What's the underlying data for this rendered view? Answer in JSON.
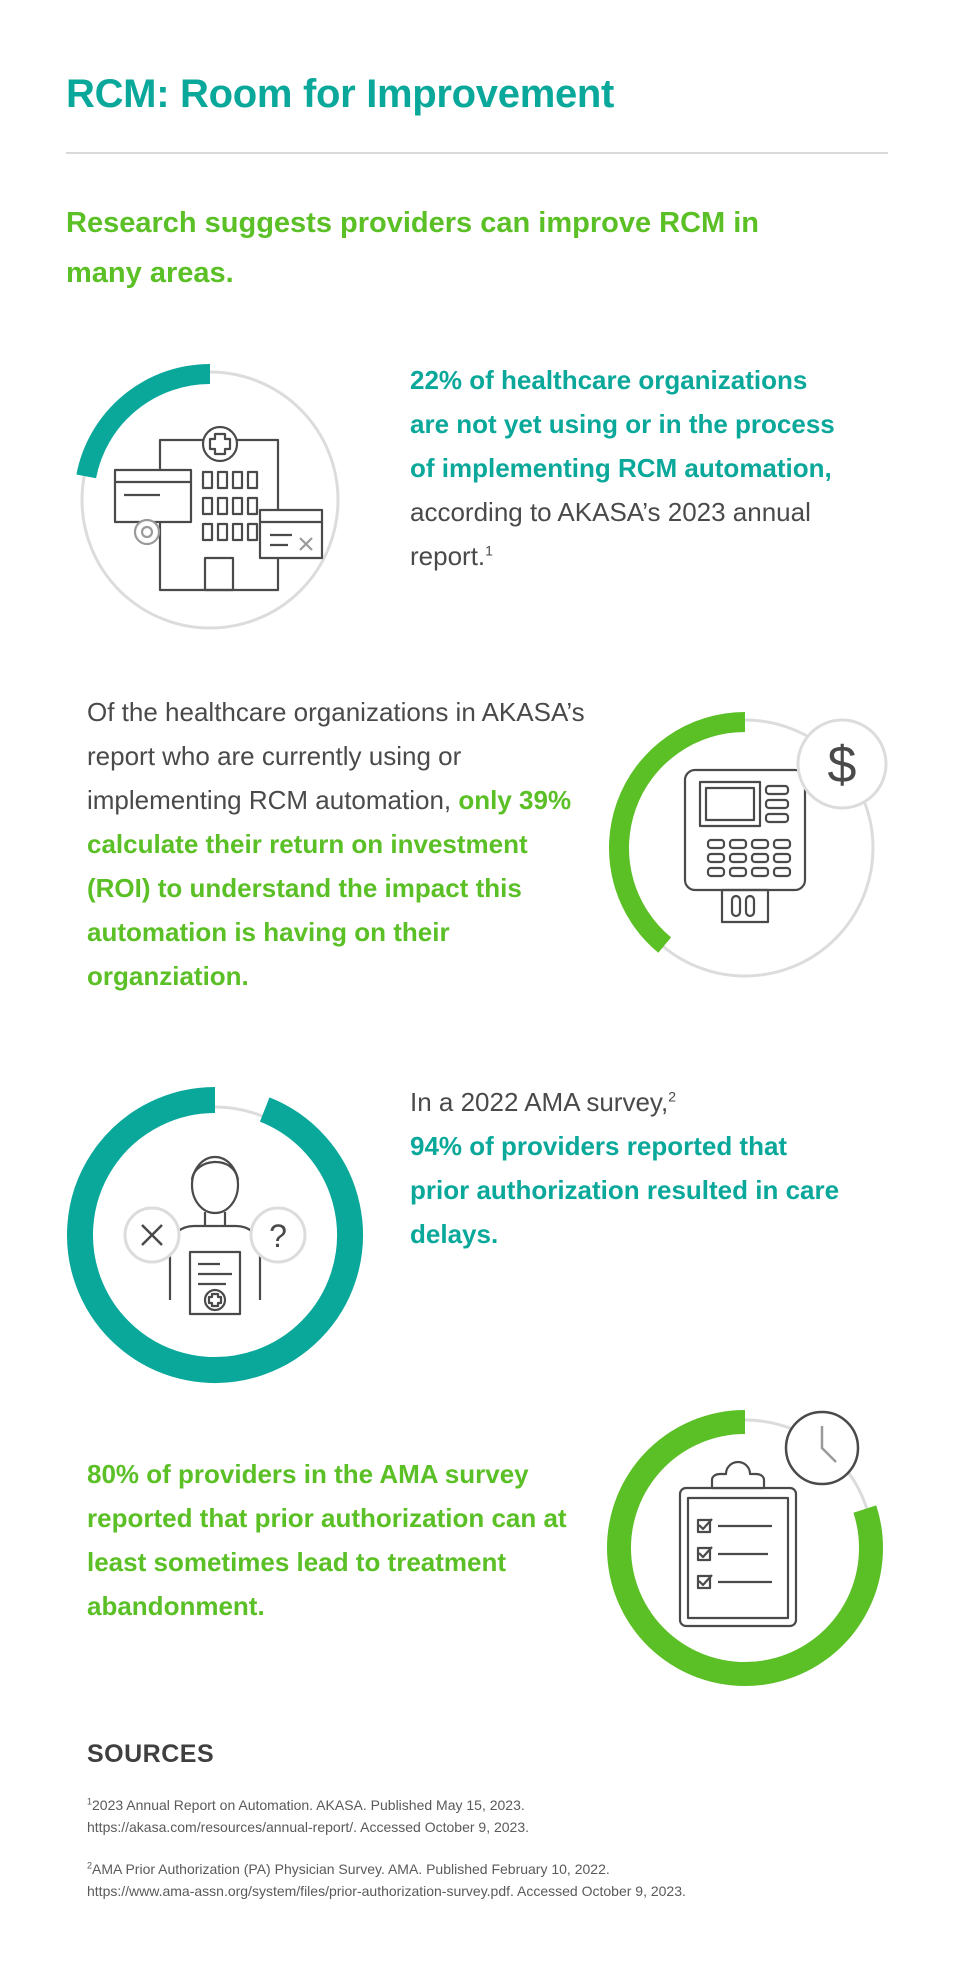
{
  "header": {
    "title": "RCM: Room for Improvement",
    "subtitle": "Research suggests providers can improve RCM in many areas."
  },
  "stats": [
    {
      "highlight": "22% of healthcare organizations are not yet using or in the process of implementing RCM automation,",
      "text": " according to AKASA’s 2023 annual report.",
      "footnote": "1",
      "percent": 22,
      "color": "#0aa89a",
      "icon": "hospital-building-icon"
    },
    {
      "text": "Of the healthcare organizations in AKASA’s report who are currently using or implementing RCM automation, ",
      "highlight": "only 39% calculate their return on investment (ROI) to understand the impact this automation is having on their organziation.",
      "percent": 39,
      "color": "#5bbf26",
      "icon": "payment-terminal-icon"
    },
    {
      "text": "In a 2022 AMA survey,",
      "footnote": "2",
      "highlight": "94% of providers reported that prior authorization resulted in care delays.",
      "percent": 94,
      "color": "#0aa89a",
      "icon": "provider-person-icon"
    },
    {
      "highlight": "80% of providers in the AMA survey reported that prior authorization can at least sometimes lead to treatment abandonment.",
      "percent": 80,
      "color": "#5bbf26",
      "icon": "clipboard-clock-icon"
    }
  ],
  "sources": {
    "heading": "SOURCES",
    "items": [
      {
        "num": "1",
        "line1": "2023 Annual Report on Automation. AKASA. Published May 15, 2023.",
        "line2": "https://akasa.com/resources/annual-report/. Accessed October 9, 2023."
      },
      {
        "num": "2",
        "line1": "AMA Prior Authorization (PA) Physician Survey. AMA. Published February 10, 2022.",
        "line2": "https://www.ama-assn.org/system/files/prior-authorization-survey.pdf. Accessed October 9, 2023."
      }
    ]
  },
  "colors": {
    "teal": "#0aa89a",
    "green": "#5bbf26",
    "ring": "#dcdcdc",
    "icon": "#4a4a4a"
  }
}
